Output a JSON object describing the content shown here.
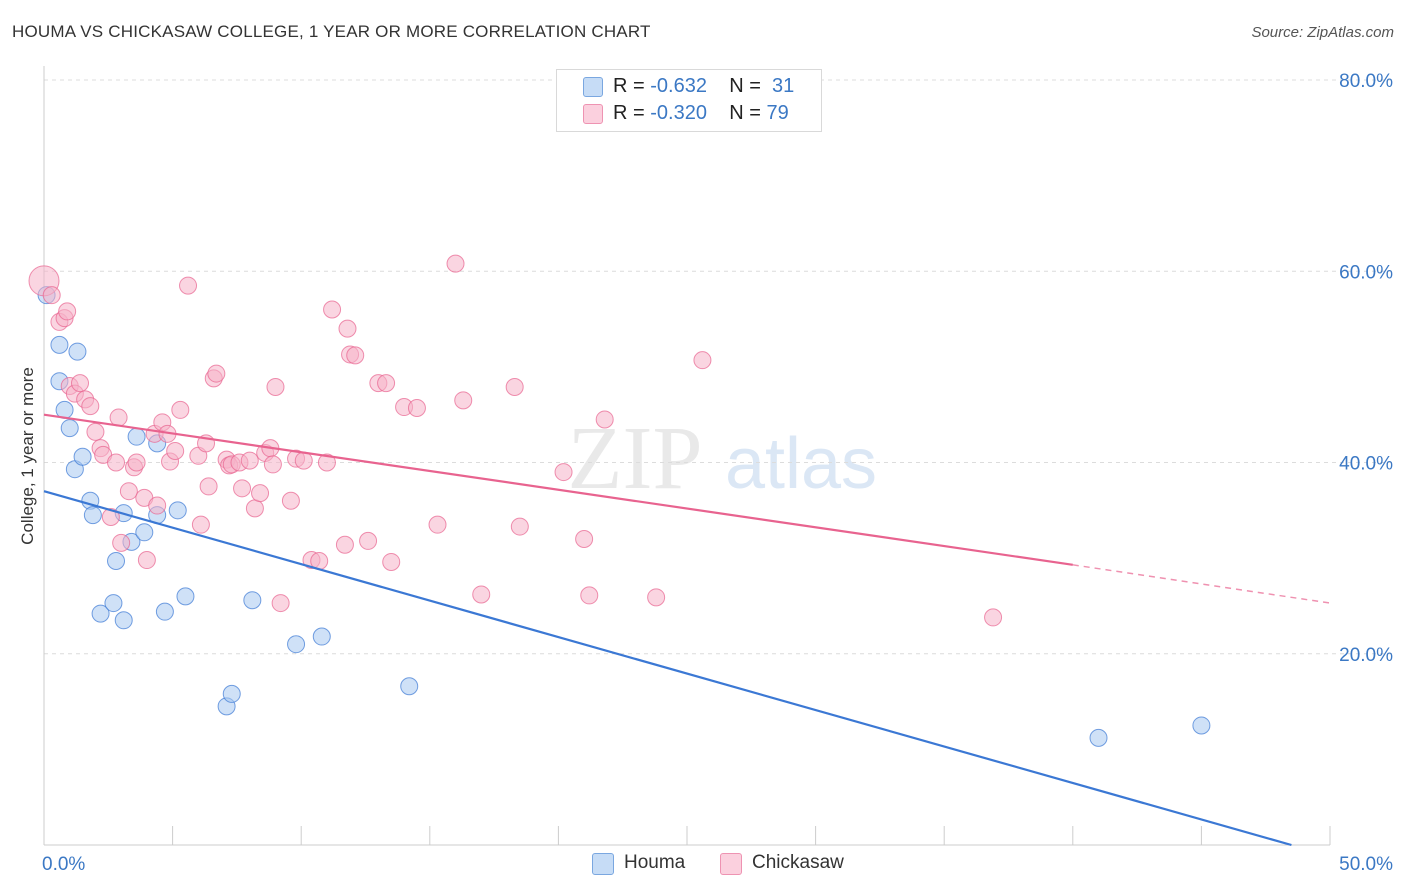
{
  "header": {
    "title": "HOUMA VS CHICKASAW COLLEGE, 1 YEAR OR MORE CORRELATION CHART",
    "source": "Source: ZipAtlas.com"
  },
  "watermark": {
    "part1": "ZIP",
    "part2": "atlas"
  },
  "legend": {
    "rows": [
      {
        "r_label": "R =",
        "r_value": "-0.632",
        "n_label": "N =",
        "n_value": "31",
        "color": "#a8c8f0"
      },
      {
        "r_label": "R =",
        "r_value": "-0.320",
        "n_label": "N =",
        "n_value": "79",
        "color": "#f5b3c8"
      }
    ]
  },
  "bottom_legend": [
    {
      "label": "Houma",
      "color": "#a8c8f0"
    },
    {
      "label": "Chickasaw",
      "color": "#f5b3c8"
    }
  ],
  "chart_data": {
    "type": "scatter",
    "title": "HOUMA VS CHICKASAW COLLEGE, 1 YEAR OR MORE CORRELATION CHART",
    "xlabel": "",
    "ylabel": "College, 1 year or more",
    "xlim": [
      0,
      50
    ],
    "ylim": [
      0,
      80
    ],
    "x_tick_labels": [
      {
        "value": 0,
        "label": "0.0%"
      },
      {
        "value": 50,
        "label": "50.0%"
      }
    ],
    "y_tick_labels": [
      {
        "value": 20,
        "label": "20.0%"
      },
      {
        "value": 40,
        "label": "40.0%"
      },
      {
        "value": 60,
        "label": "60.0%"
      },
      {
        "value": 80,
        "label": "80.0%"
      }
    ],
    "grid": "horizontal dashed",
    "series": [
      {
        "name": "Houma",
        "color": "#3b78d4",
        "fill": "#a8c8f0",
        "r": -0.632,
        "n": 31,
        "trend": {
          "x1": 0,
          "y1": 37,
          "x2": 48.5,
          "y2": 0
        },
        "points": [
          [
            0.1,
            57.5
          ],
          [
            0.6,
            48.5
          ],
          [
            0.6,
            52.3
          ],
          [
            0.8,
            45.5
          ],
          [
            1.0,
            43.6
          ],
          [
            1.2,
            39.3
          ],
          [
            1.3,
            51.6
          ],
          [
            1.5,
            40.6
          ],
          [
            1.8,
            36.0
          ],
          [
            1.9,
            34.5
          ],
          [
            2.2,
            24.2
          ],
          [
            2.7,
            25.3
          ],
          [
            2.8,
            29.7
          ],
          [
            3.1,
            23.5
          ],
          [
            3.1,
            34.7
          ],
          [
            3.4,
            31.7
          ],
          [
            3.6,
            42.7
          ],
          [
            3.9,
            32.7
          ],
          [
            4.4,
            34.5
          ],
          [
            4.4,
            42.0
          ],
          [
            4.7,
            24.4
          ],
          [
            5.2,
            35.0
          ],
          [
            5.5,
            26.0
          ],
          [
            7.1,
            14.5
          ],
          [
            7.3,
            15.8
          ],
          [
            8.1,
            25.6
          ],
          [
            9.8,
            21.0
          ],
          [
            10.8,
            21.8
          ],
          [
            14.2,
            16.6
          ],
          [
            41.0,
            11.2
          ],
          [
            45.0,
            12.5
          ]
        ]
      },
      {
        "name": "Chickasaw",
        "color": "#e8638f",
        "fill": "#f5b3c8",
        "r": -0.32,
        "n": 79,
        "trend": {
          "x1": 0,
          "y1": 45,
          "x2": 40,
          "y2": 29.3,
          "dash_x2": 50,
          "dash_y2": 25.3
        },
        "points": [
          [
            0.0,
            59.0
          ],
          [
            0.3,
            57.5
          ],
          [
            0.6,
            54.7
          ],
          [
            0.8,
            55.1
          ],
          [
            0.9,
            55.8
          ],
          [
            1.0,
            48.0
          ],
          [
            1.2,
            47.2
          ],
          [
            1.4,
            48.3
          ],
          [
            1.6,
            46.6
          ],
          [
            1.8,
            45.9
          ],
          [
            2.0,
            43.2
          ],
          [
            2.2,
            41.5
          ],
          [
            2.3,
            40.8
          ],
          [
            2.6,
            34.3
          ],
          [
            2.8,
            40.0
          ],
          [
            2.9,
            44.7
          ],
          [
            3.0,
            31.6
          ],
          [
            3.3,
            37.0
          ],
          [
            3.5,
            39.5
          ],
          [
            3.6,
            40.0
          ],
          [
            3.9,
            36.3
          ],
          [
            4.0,
            29.8
          ],
          [
            4.3,
            43.0
          ],
          [
            4.4,
            35.5
          ],
          [
            4.6,
            44.2
          ],
          [
            4.8,
            43.0
          ],
          [
            4.9,
            40.1
          ],
          [
            5.1,
            41.2
          ],
          [
            5.3,
            45.5
          ],
          [
            5.6,
            58.5
          ],
          [
            6.0,
            40.7
          ],
          [
            6.1,
            33.5
          ],
          [
            6.3,
            42.0
          ],
          [
            6.4,
            37.5
          ],
          [
            6.6,
            48.8
          ],
          [
            6.7,
            49.3
          ],
          [
            7.1,
            40.3
          ],
          [
            7.2,
            39.7
          ],
          [
            7.3,
            39.8
          ],
          [
            7.6,
            40.0
          ],
          [
            7.7,
            37.3
          ],
          [
            8.0,
            40.2
          ],
          [
            8.2,
            35.2
          ],
          [
            8.4,
            36.8
          ],
          [
            8.6,
            41.0
          ],
          [
            8.8,
            41.5
          ],
          [
            8.9,
            39.8
          ],
          [
            9.0,
            47.9
          ],
          [
            9.2,
            25.3
          ],
          [
            9.6,
            36.0
          ],
          [
            9.8,
            40.4
          ],
          [
            10.1,
            40.2
          ],
          [
            10.4,
            29.8
          ],
          [
            10.7,
            29.7
          ],
          [
            11.0,
            40.0
          ],
          [
            11.2,
            56.0
          ],
          [
            11.7,
            31.4
          ],
          [
            11.8,
            54.0
          ],
          [
            11.9,
            51.3
          ],
          [
            12.1,
            51.2
          ],
          [
            12.6,
            31.8
          ],
          [
            13.0,
            48.3
          ],
          [
            13.3,
            48.3
          ],
          [
            13.5,
            29.6
          ],
          [
            14.0,
            45.8
          ],
          [
            14.5,
            45.7
          ],
          [
            15.3,
            33.5
          ],
          [
            16.0,
            60.8
          ],
          [
            16.3,
            46.5
          ],
          [
            17.0,
            26.2
          ],
          [
            18.3,
            47.9
          ],
          [
            18.5,
            33.3
          ],
          [
            20.2,
            39.0
          ],
          [
            21.0,
            32.0
          ],
          [
            21.2,
            26.1
          ],
          [
            21.8,
            44.5
          ],
          [
            23.8,
            25.9
          ],
          [
            25.6,
            50.7
          ],
          [
            36.9,
            23.8
          ]
        ]
      }
    ]
  }
}
